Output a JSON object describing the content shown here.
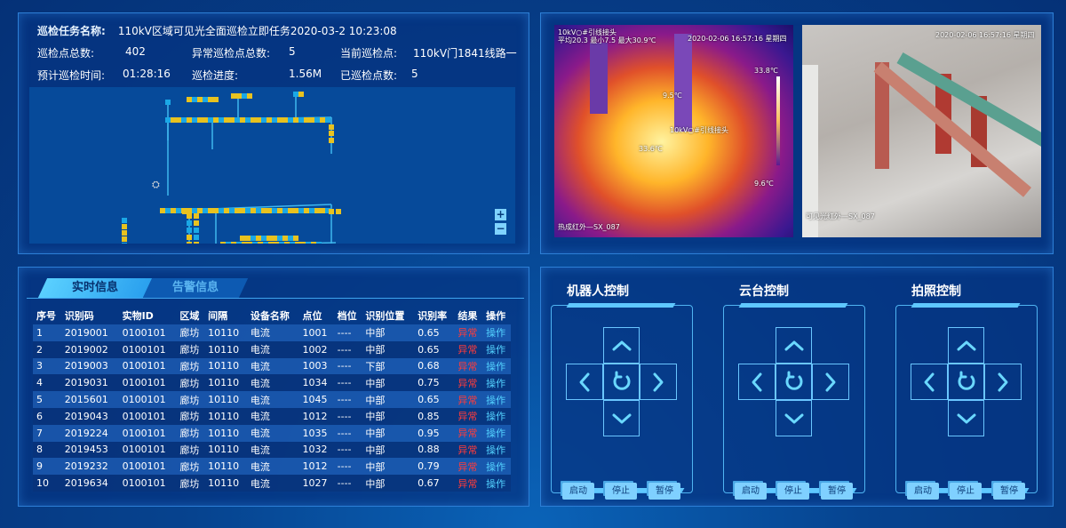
{
  "task": {
    "name_label": "巡检任务名称:",
    "name": "110kV区域可见光全面巡检立即任务2020-03-2 10:23:08",
    "total_label": "巡检点总数:",
    "total": "402",
    "abnormal_label": "异常巡检点总数:",
    "abnormal": "5",
    "current_label": "当前巡检点:",
    "current": "110kV门1841线路一",
    "eta_label": "预计巡检时间:",
    "eta": "01:28:16",
    "progress_label": "巡检进度:",
    "progress": "1.56M",
    "done_label": "已巡检点数:",
    "done": "5"
  },
  "map": {
    "zoom_in": "+",
    "zoom_out": "−",
    "node_colors": {
      "normal": "#1aa8e6",
      "checked": "#e8c21f"
    }
  },
  "cameras": {
    "thermal": {
      "title": "10kV○#引线接头",
      "stats": "平均20.3 最小7.5 最大30.9℃",
      "time": "2020-02-06 16:57:16 星期四",
      "max": "33.8℃",
      "min": "9.6℃",
      "spot1": "9.5℃",
      "spot2": "10kV○#引线接头",
      "spot3": "33.6℃",
      "source": "热成红外—SX_087"
    },
    "visible": {
      "time": "2020-02-06 16:57:16 星期四",
      "source": "可见光红外—SX_087"
    }
  },
  "tabs": [
    {
      "label": "实时信息",
      "active": true
    },
    {
      "label": "告警信息",
      "active": false
    }
  ],
  "table": {
    "headers": [
      "序号",
      "识别码",
      "实物ID",
      "区域",
      "间隔",
      "设备名称",
      "点位",
      "档位",
      "识别位置",
      "识别率",
      "结果",
      "操作"
    ],
    "rows": [
      [
        "1",
        "2019001",
        "0100101",
        "廊坊",
        "10110",
        "电流",
        "1001",
        "----",
        "中部",
        "0.65",
        "异常",
        "操作"
      ],
      [
        "2",
        "2019002",
        "0100101",
        "廊坊",
        "10110",
        "电流",
        "1002",
        "----",
        "中部",
        "0.65",
        "异常",
        "操作"
      ],
      [
        "3",
        "2019003",
        "0100101",
        "廊坊",
        "10110",
        "电流",
        "1003",
        "----",
        "下部",
        "0.68",
        "异常",
        "操作"
      ],
      [
        "4",
        "2019031",
        "0100101",
        "廊坊",
        "10110",
        "电流",
        "1034",
        "----",
        "中部",
        "0.75",
        "异常",
        "操作"
      ],
      [
        "5",
        "2015601",
        "0100101",
        "廊坊",
        "10110",
        "电流",
        "1045",
        "----",
        "中部",
        "0.65",
        "异常",
        "操作"
      ],
      [
        "6",
        "2019043",
        "0100101",
        "廊坊",
        "10110",
        "电流",
        "1012",
        "----",
        "中部",
        "0.85",
        "异常",
        "操作"
      ],
      [
        "7",
        "2019224",
        "0100101",
        "廊坊",
        "10110",
        "电流",
        "1035",
        "----",
        "中部",
        "0.95",
        "异常",
        "操作"
      ],
      [
        "8",
        "2019453",
        "0100101",
        "廊坊",
        "10110",
        "电流",
        "1032",
        "----",
        "中部",
        "0.88",
        "异常",
        "操作"
      ],
      [
        "9",
        "2019232",
        "0100101",
        "廊坊",
        "10110",
        "电流",
        "1012",
        "----",
        "中部",
        "0.79",
        "异常",
        "操作"
      ],
      [
        "10",
        "2019634",
        "0100101",
        "廊坊",
        "10110",
        "电流",
        "1027",
        "----",
        "中部",
        "0.67",
        "异常",
        "操作"
      ]
    ]
  },
  "controls": [
    {
      "title": "机器人控制",
      "buttons": [
        "启动",
        "停止",
        "暂停"
      ]
    },
    {
      "title": "云台控制",
      "buttons": [
        "启动",
        "停止",
        "暂停"
      ]
    },
    {
      "title": "拍照控制",
      "buttons": [
        "启动",
        "停止",
        "暂停"
      ]
    }
  ]
}
